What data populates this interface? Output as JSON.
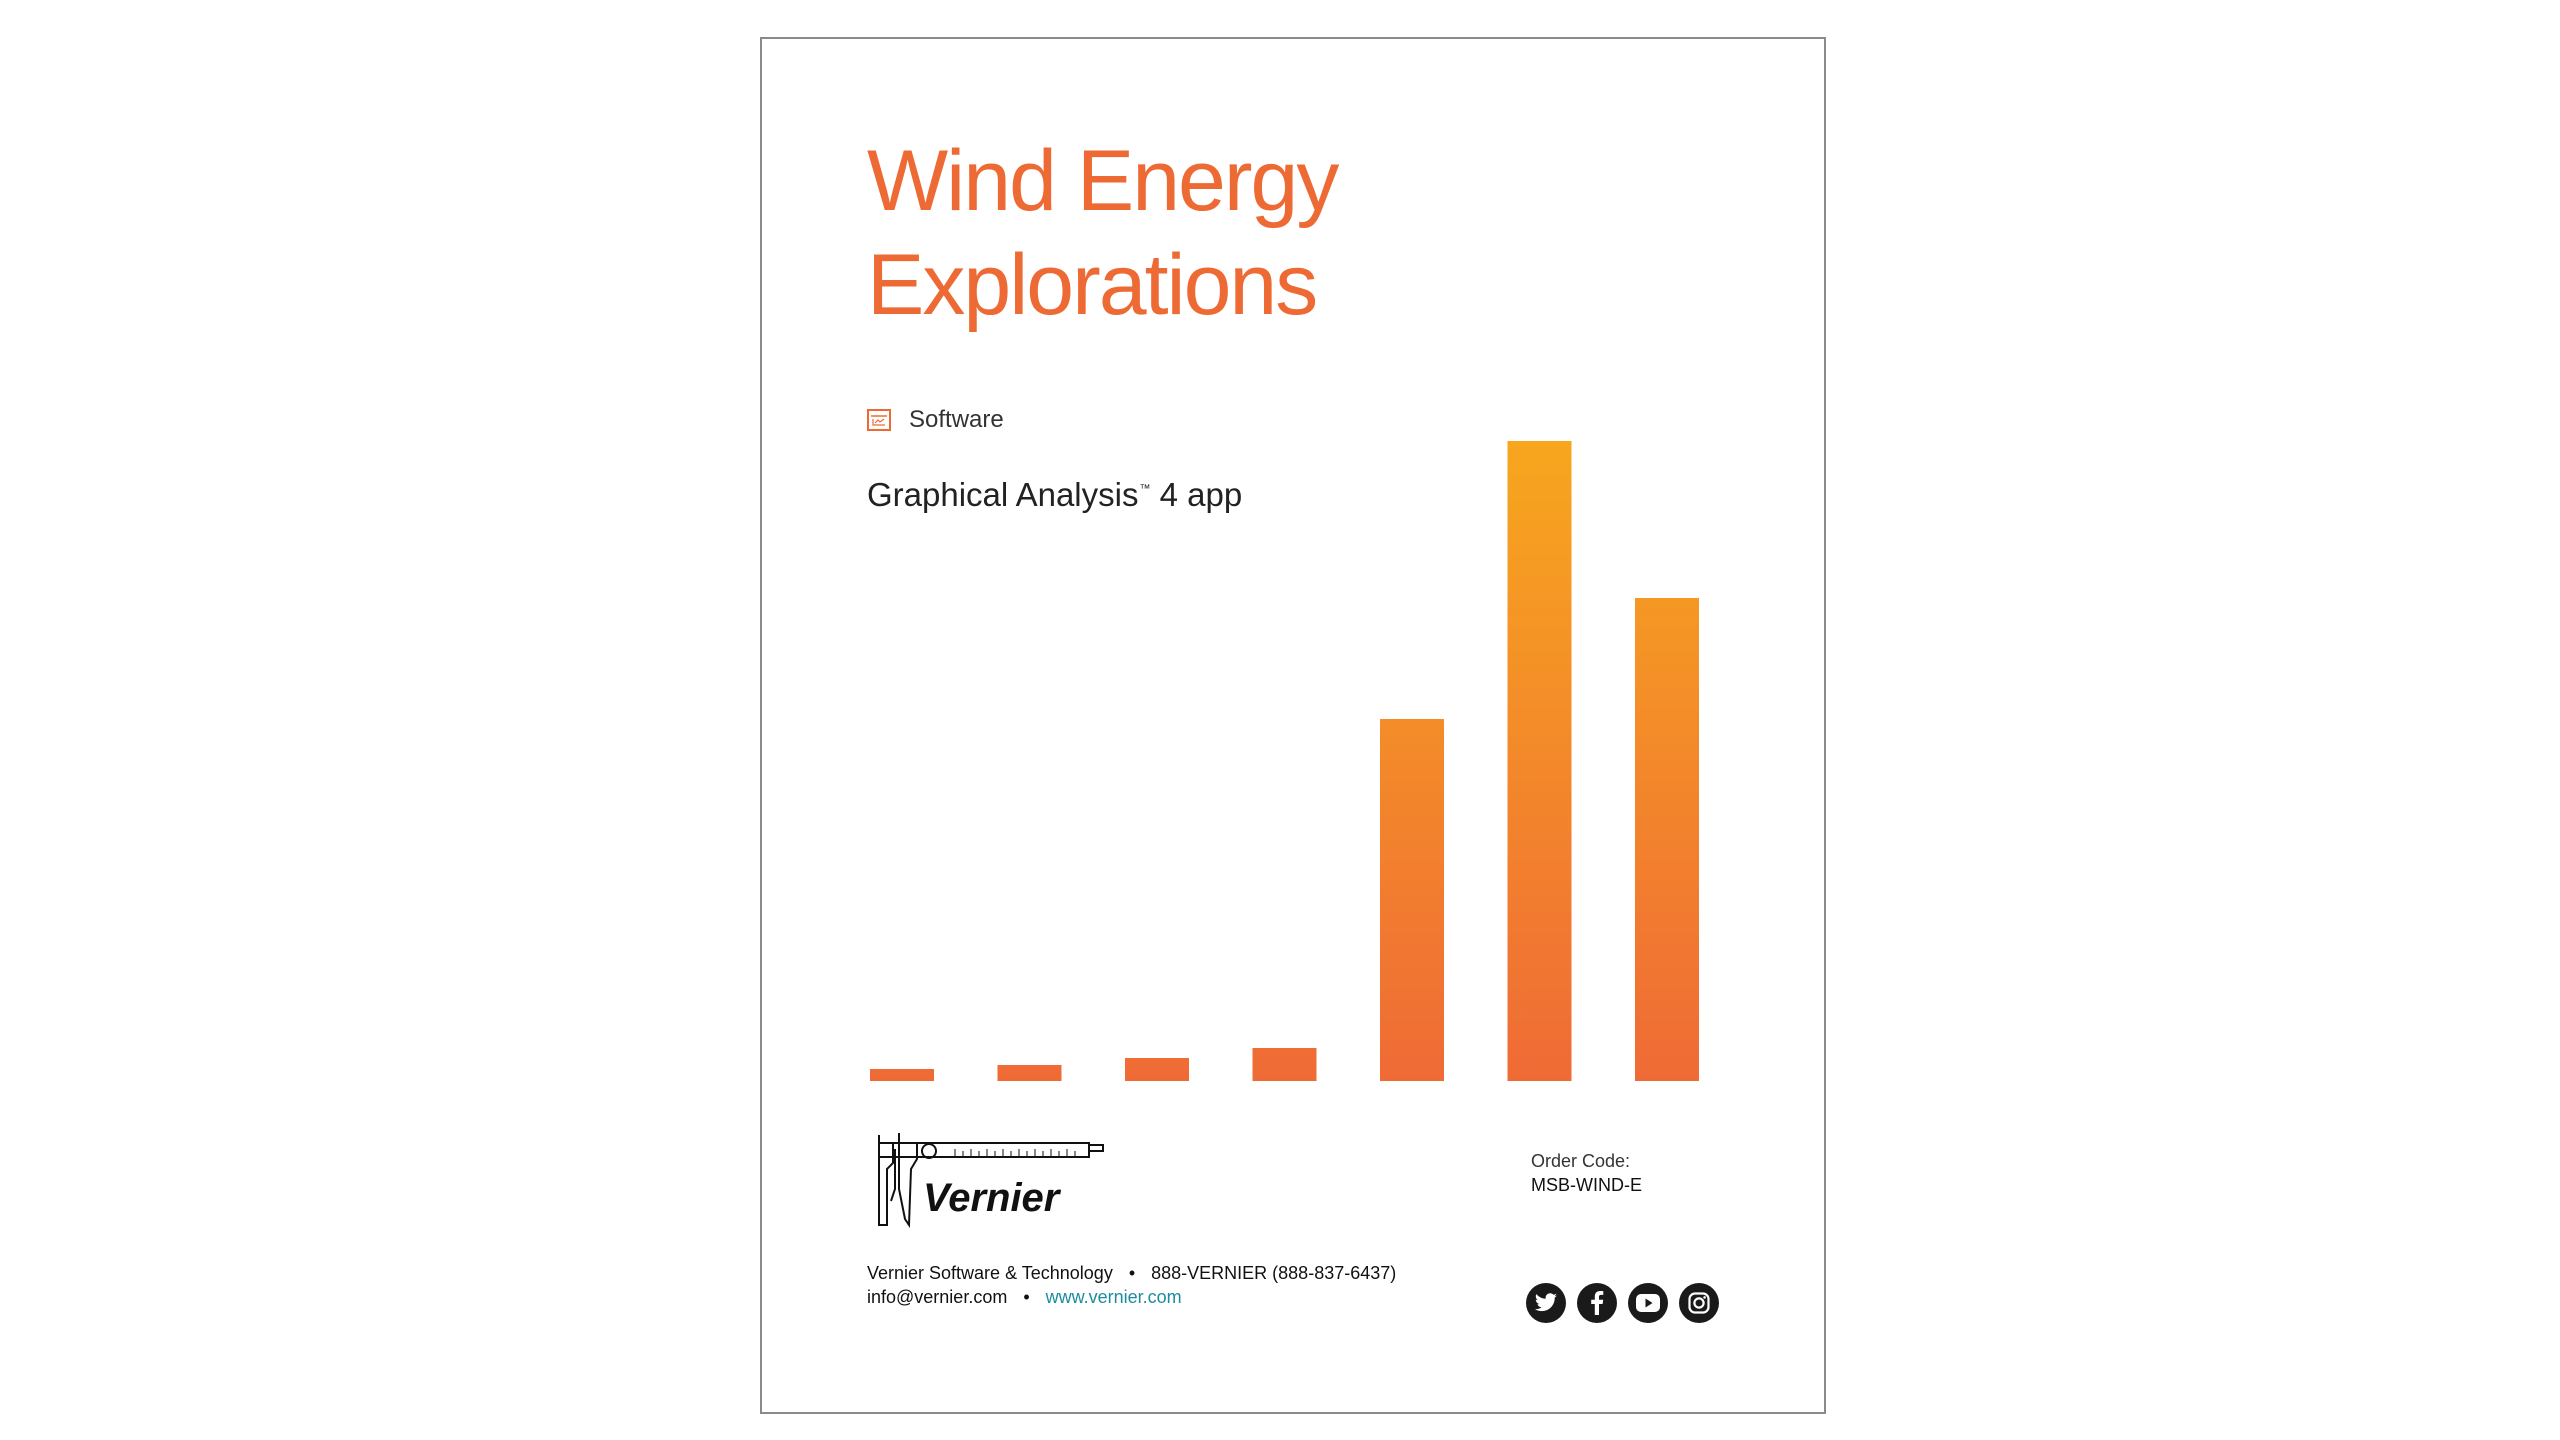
{
  "document": {
    "title_line1": "Wind Energy",
    "title_line2": "Explorations",
    "category": "Software",
    "subtitle": "Graphical Analysis",
    "subtitle_tm": "™",
    "subtitle_suffix": " 4 app"
  },
  "chart_data": {
    "type": "bar",
    "categories": [
      "",
      "",
      "",
      "",
      "",
      "",
      ""
    ],
    "values": [
      12,
      16,
      23,
      33,
      362,
      640,
      483
    ],
    "title": "",
    "xlabel": "",
    "ylabel": "",
    "ylim": [
      0,
      640
    ],
    "grid": false,
    "colors": {
      "top": "#f7a61e",
      "bottom": "#ef6b36"
    }
  },
  "footer": {
    "logo_text": "Vernier",
    "order_label": "Order Code:",
    "order_code": "MSB-WIND-E",
    "company": "Vernier Software & Technology",
    "separator": "•",
    "phone": "888-VERNIER (888-837-6437)",
    "email": "info@vernier.com",
    "website": "www.vernier.com",
    "social_icons": [
      "twitter-icon",
      "facebook-icon",
      "youtube-icon",
      "instagram-icon"
    ]
  }
}
